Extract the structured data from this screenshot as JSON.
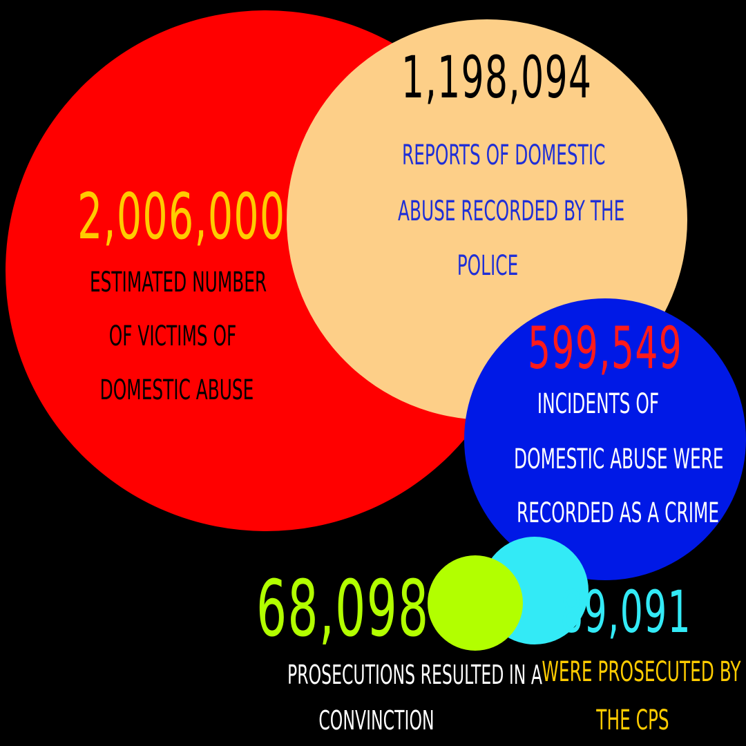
{
  "colors": {
    "background": "#000000",
    "victims_circle": "#ff0000",
    "reports_circle": "#fdcf88",
    "crimes_circle": "#0019e6",
    "convictions_circle": "#b2ff00",
    "prosecuted_circle": "#33eaf6"
  },
  "stats": {
    "victims": {
      "number": "2,006,000",
      "label_lines": [
        "ESTIMATED NUMBER",
        "OF VICTIMS OF",
        "DOMESTIC ABUSE"
      ],
      "number_color": "#ffcc00",
      "label_color": "#000000"
    },
    "reports": {
      "number": "1,198,094",
      "label_lines": [
        "REPORTS OF DOMESTIC",
        "ABUSE RECORDED BY THE",
        "POLICE"
      ],
      "number_color": "#000000",
      "label_color": "#1f2fd6"
    },
    "crimes": {
      "number": "599,549",
      "label_lines": [
        "INCIDENTS OF",
        "DOMESTIC ABUSE WERE",
        "RECORDED AS A CRIME"
      ],
      "number_color": "#ff1a1a",
      "label_color": "#ffffff"
    },
    "convictions": {
      "number": "68,098",
      "label_lines": [
        "PROSECUTIONS RESULTED IN A",
        "CONVINCTION"
      ],
      "number_color": "#b2ff00",
      "label_color": "#ffffff"
    },
    "prosecuted": {
      "number": "89,091",
      "label_lines": [
        "WERE PROSECUTED BY",
        "THE CPS"
      ],
      "number_color": "#33eaf6",
      "label_color": "#ffcc00"
    }
  }
}
